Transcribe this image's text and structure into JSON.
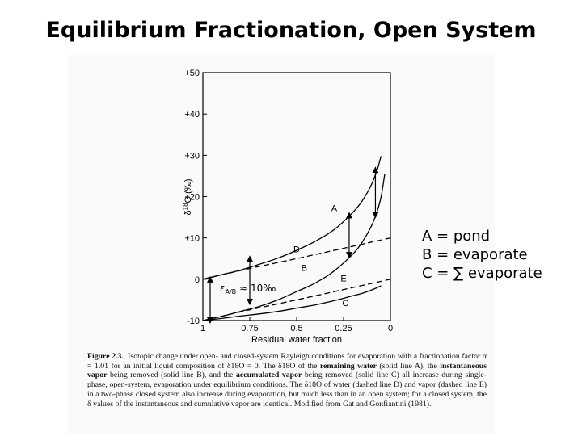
{
  "slide": {
    "title": "Equilibrium Fractionation, Open System"
  },
  "legend": {
    "lines": [
      "A = pond",
      "B = evaporate",
      "C = ∑ evaporate"
    ]
  },
  "annotation": {
    "epsilon_label": "ε",
    "epsilon_subscript": "A/B",
    "epsilon_value": "≈ 10‰"
  },
  "caption": {
    "figure_label": "Figure 2.3.",
    "text_1": "Isotopic change under open- and closed-system Rayleigh conditions for evaporation with a fractionation factor α = 1.01 for an initial liquid composition of δ18O = 0. The δ18O of the ",
    "bold_1": "remaining water",
    "text_2": " (solid line A), the ",
    "bold_2": "instantaneous vapor",
    "text_3": " being removed (solid line B), and the ",
    "bold_3": "accumulated vapor",
    "text_4": " being removed (solid line C) all increase during single-phase, open-system, evaporation under equilibrium conditions. The δ18O of water (dashed line D) and vapor (dashed line E) in a two-phase closed system also increase during evaporation, but much less than in an open system; for a closed system, the δ values of the instantaneous and cumulative vapor are identical. Modified from Gat and Gonfiantini (1981)."
  },
  "chart_data": {
    "type": "line",
    "xlabel": "Residual water fraction",
    "ylabel": "δ18O (‰)",
    "ylabel_main": "δ",
    "ylabel_sup": "18",
    "ylabel_rest": "O (‰)",
    "xlim": [
      1,
      0
    ],
    "ylim": [
      -10,
      50
    ],
    "x_ticks": [
      1,
      0.75,
      0.5,
      0.25,
      0
    ],
    "x_tick_labels": [
      "1",
      "0.75",
      "0.5",
      "0.25",
      "0"
    ],
    "y_ticks": [
      -10,
      0,
      10,
      20,
      30,
      40,
      50
    ],
    "y_tick_labels": [
      "-10",
      "0",
      "+10",
      "+20",
      "+30",
      "+40",
      "+50"
    ],
    "series": [
      {
        "name": "A",
        "style": "solid",
        "x": [
          1,
          0.9,
          0.8,
          0.7,
          0.6,
          0.5,
          0.4,
          0.3,
          0.2,
          0.15,
          0.1,
          0.07,
          0.05
        ],
        "y": [
          0,
          1.1,
          2.2,
          3.6,
          5.1,
          7.0,
          9.2,
          12.0,
          16.2,
          19.0,
          23.0,
          26.6,
          29.8
        ]
      },
      {
        "name": "B",
        "style": "solid",
        "x": [
          1,
          0.9,
          0.8,
          0.7,
          0.6,
          0.5,
          0.4,
          0.3,
          0.2,
          0.15,
          0.1,
          0.07,
          0.05,
          0.03
        ],
        "y": [
          -10,
          -9.0,
          -7.8,
          -6.6,
          -5.0,
          -3.0,
          -0.9,
          2.0,
          6.1,
          9.0,
          13.0,
          16.6,
          19.9,
          25.5
        ]
      },
      {
        "name": "C",
        "style": "solid",
        "x": [
          1,
          0.9,
          0.8,
          0.7,
          0.6,
          0.5,
          0.4,
          0.3,
          0.2,
          0.15,
          0.1,
          0.05
        ],
        "y": [
          -10,
          -9.5,
          -8.9,
          -8.4,
          -7.8,
          -7.0,
          -6.2,
          -5.2,
          -4.0,
          -3.4,
          -2.6,
          -1.6
        ]
      },
      {
        "name": "D",
        "style": "dashed",
        "x": [
          1,
          0.75,
          0.5,
          0.25,
          0
        ],
        "y": [
          0,
          2.6,
          5.0,
          7.5,
          10.0
        ]
      },
      {
        "name": "E",
        "style": "dashed",
        "x": [
          1,
          0.75,
          0.5,
          0.25,
          0
        ],
        "y": [
          -10,
          -7.4,
          -5.0,
          -2.5,
          0
        ]
      }
    ],
    "curve_labels": [
      {
        "text": "A",
        "x": 0.3,
        "y": 16.5
      },
      {
        "text": "B",
        "x": 0.46,
        "y": 2.0
      },
      {
        "text": "C",
        "x": 0.24,
        "y": -6.5
      },
      {
        "text": "D",
        "x": 0.5,
        "y": 6.5
      },
      {
        "text": "E",
        "x": 0.25,
        "y": -0.5
      }
    ],
    "arrows": [
      {
        "x": 1.0,
        "y_from": -10,
        "y_to": 0
      },
      {
        "x": 0.75,
        "y_from": -5.5,
        "y_to": 5.0
      },
      {
        "x": 0.22,
        "y_from": 5.8,
        "y_to": 15.5
      },
      {
        "x": 0.08,
        "y_from": 15.5,
        "y_to": 26.5
      }
    ]
  }
}
